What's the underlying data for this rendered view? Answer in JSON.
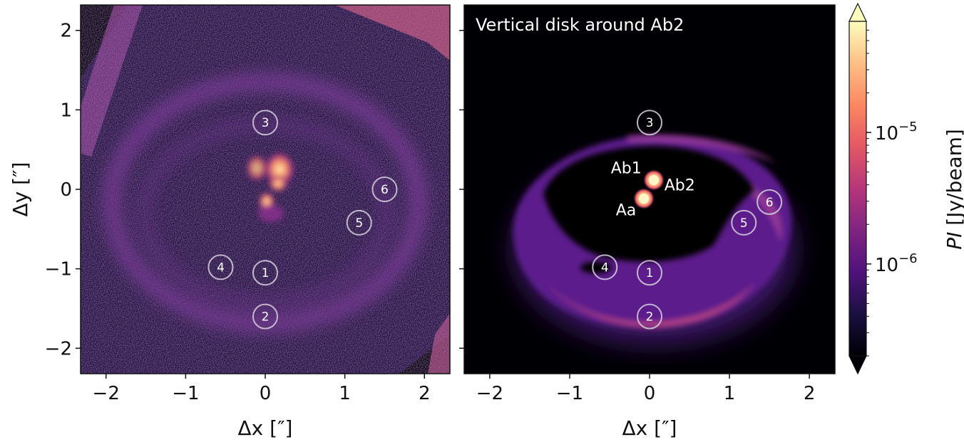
{
  "chart_data": [
    {
      "type": "heatmap",
      "panel": "left",
      "title": "",
      "xlabel": "Δx [″]",
      "ylabel": "Δy [″]",
      "xlim": [
        -2.32,
        2.32
      ],
      "ylim": [
        -2.32,
        2.32
      ],
      "xticks": [
        -2,
        -1,
        0,
        1,
        2
      ],
      "yticks": [
        -2,
        -1,
        0,
        1,
        2
      ],
      "xtick_labels": [
        "−2",
        "−1",
        "0",
        "1",
        "2"
      ],
      "ytick_labels": [
        "−2",
        "−1",
        "0",
        "1",
        "2"
      ],
      "regions": [
        {
          "label": "1",
          "x": 0.0,
          "y": -1.05
        },
        {
          "label": "2",
          "x": 0.0,
          "y": -1.6
        },
        {
          "label": "3",
          "x": 0.0,
          "y": 0.84
        },
        {
          "label": "4",
          "x": -0.56,
          "y": -0.98
        },
        {
          "label": "5",
          "x": 1.18,
          "y": -0.42
        },
        {
          "label": "6",
          "x": 1.5,
          "y": 0.0
        }
      ]
    },
    {
      "type": "heatmap",
      "panel": "right",
      "title": "Vertical disk around Ab2",
      "xlabel": "Δx [″]",
      "ylabel": "",
      "xlim": [
        -2.32,
        2.32
      ],
      "ylim": [
        -2.32,
        2.32
      ],
      "xticks": [
        -2,
        -1,
        0,
        1,
        2
      ],
      "xtick_labels": [
        "−2",
        "−1",
        "0",
        "1",
        "2"
      ],
      "stars": [
        {
          "label": "Ab1",
          "x": 0.06,
          "y": 0.11
        },
        {
          "label": "Ab2",
          "x": 0.06,
          "y": 0.11
        },
        {
          "label": "Aa",
          "x": -0.06,
          "y": -0.13
        }
      ],
      "regions": [
        {
          "label": "1",
          "x": 0.0,
          "y": -1.05
        },
        {
          "label": "2",
          "x": 0.0,
          "y": -1.6
        },
        {
          "label": "3",
          "x": 0.0,
          "y": 0.84
        },
        {
          "label": "4",
          "x": -0.56,
          "y": -0.98
        },
        {
          "label": "5",
          "x": 1.18,
          "y": -0.42
        },
        {
          "label": "6",
          "x": 1.5,
          "y": -0.16
        }
      ]
    }
  ],
  "colorbar": {
    "label": "PI [Jy/beam]",
    "label_italic": "PI",
    "label_unit": " [Jy/beam]",
    "scale": "log",
    "range": [
      2e-07,
      7e-05
    ],
    "ticks": [
      {
        "label": "10",
        "exp": "−5",
        "value": 1e-05
      },
      {
        "label": "10",
        "exp": "−6",
        "value": 1e-06
      }
    ],
    "colormap": "magma",
    "extend": "both"
  }
}
